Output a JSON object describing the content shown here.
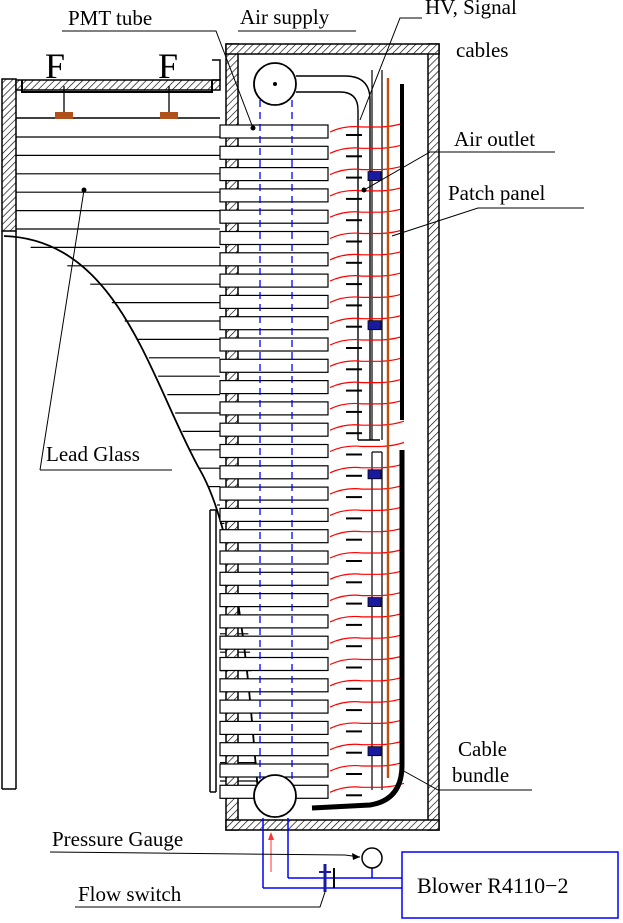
{
  "labels": {
    "pmt_tube": "PMT  tube",
    "air_supply": "Air supply",
    "hv_signal_line1": "HV, Signal",
    "hv_signal_line2": "cables",
    "air_outlet": "Air outlet",
    "patch_panel": "Patch panel",
    "lead_glass": "Lead Glass",
    "cable_line1": "Cable",
    "cable_line2": "bundle",
    "pressure_gauge": "Pressure Gauge",
    "flow_switch": "Flow switch",
    "blower": "Blower  R4110−2",
    "f_left": "F",
    "f_right": "F"
  },
  "colors": {
    "line": "#000000",
    "signal_cable": "#ff0000",
    "air_pipe": "#0000ff",
    "connector": "#1a1aa0",
    "patch_rod": "#c05010",
    "f_marker": "#b0501a",
    "flow_arrow": "#ff3333"
  }
}
